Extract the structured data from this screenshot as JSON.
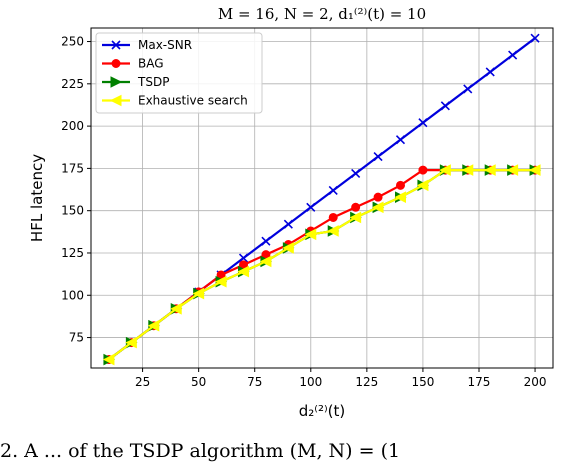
{
  "chart_data": {
    "type": "line",
    "title": "M = 16, N = 2, d₁⁽²⁾(t) = 10",
    "xlabel": "d₂⁽²⁾(t)",
    "ylabel": "HFL latency",
    "xlim": [
      2,
      208
    ],
    "ylim": [
      57,
      258
    ],
    "xticks": [
      25,
      50,
      75,
      100,
      125,
      150,
      175,
      200
    ],
    "yticks": [
      75,
      100,
      125,
      150,
      175,
      200,
      225,
      250
    ],
    "grid": true,
    "legend_position": "top-left",
    "x": [
      10,
      20,
      30,
      40,
      50,
      60,
      70,
      80,
      90,
      100,
      110,
      120,
      130,
      140,
      150,
      160,
      170,
      180,
      190,
      200
    ],
    "series": [
      {
        "name": "Max-SNR",
        "color": "#0000dd",
        "marker": "x",
        "values": [
          62,
          72,
          82,
          92,
          102,
          112,
          122,
          132,
          142,
          152,
          162,
          172,
          182,
          192,
          202,
          212,
          222,
          232,
          242,
          252
        ]
      },
      {
        "name": "BAG",
        "color": "#ff0000",
        "marker": "circle",
        "values": [
          62,
          72,
          82,
          92,
          102,
          112,
          118,
          124,
          130,
          138,
          146,
          152,
          158,
          165,
          174,
          174,
          174,
          174,
          174,
          174
        ]
      },
      {
        "name": "TSDP",
        "color": "#008000",
        "marker": "triangle-right",
        "values": [
          62,
          72,
          82,
          92,
          101,
          108,
          114,
          120,
          128,
          136,
          138,
          146,
          152,
          158,
          165,
          174,
          174,
          174,
          174,
          174
        ]
      },
      {
        "name": "Exhaustive search",
        "color": "#ffff00",
        "marker": "triangle-left",
        "values": [
          62,
          72,
          82,
          92,
          101,
          108,
          114,
          120,
          128,
          136,
          138,
          146,
          152,
          158,
          165,
          174,
          174,
          174,
          174,
          174
        ]
      }
    ]
  },
  "caption": "2. A ... of the TSDP algorithm (M, N) = (1"
}
